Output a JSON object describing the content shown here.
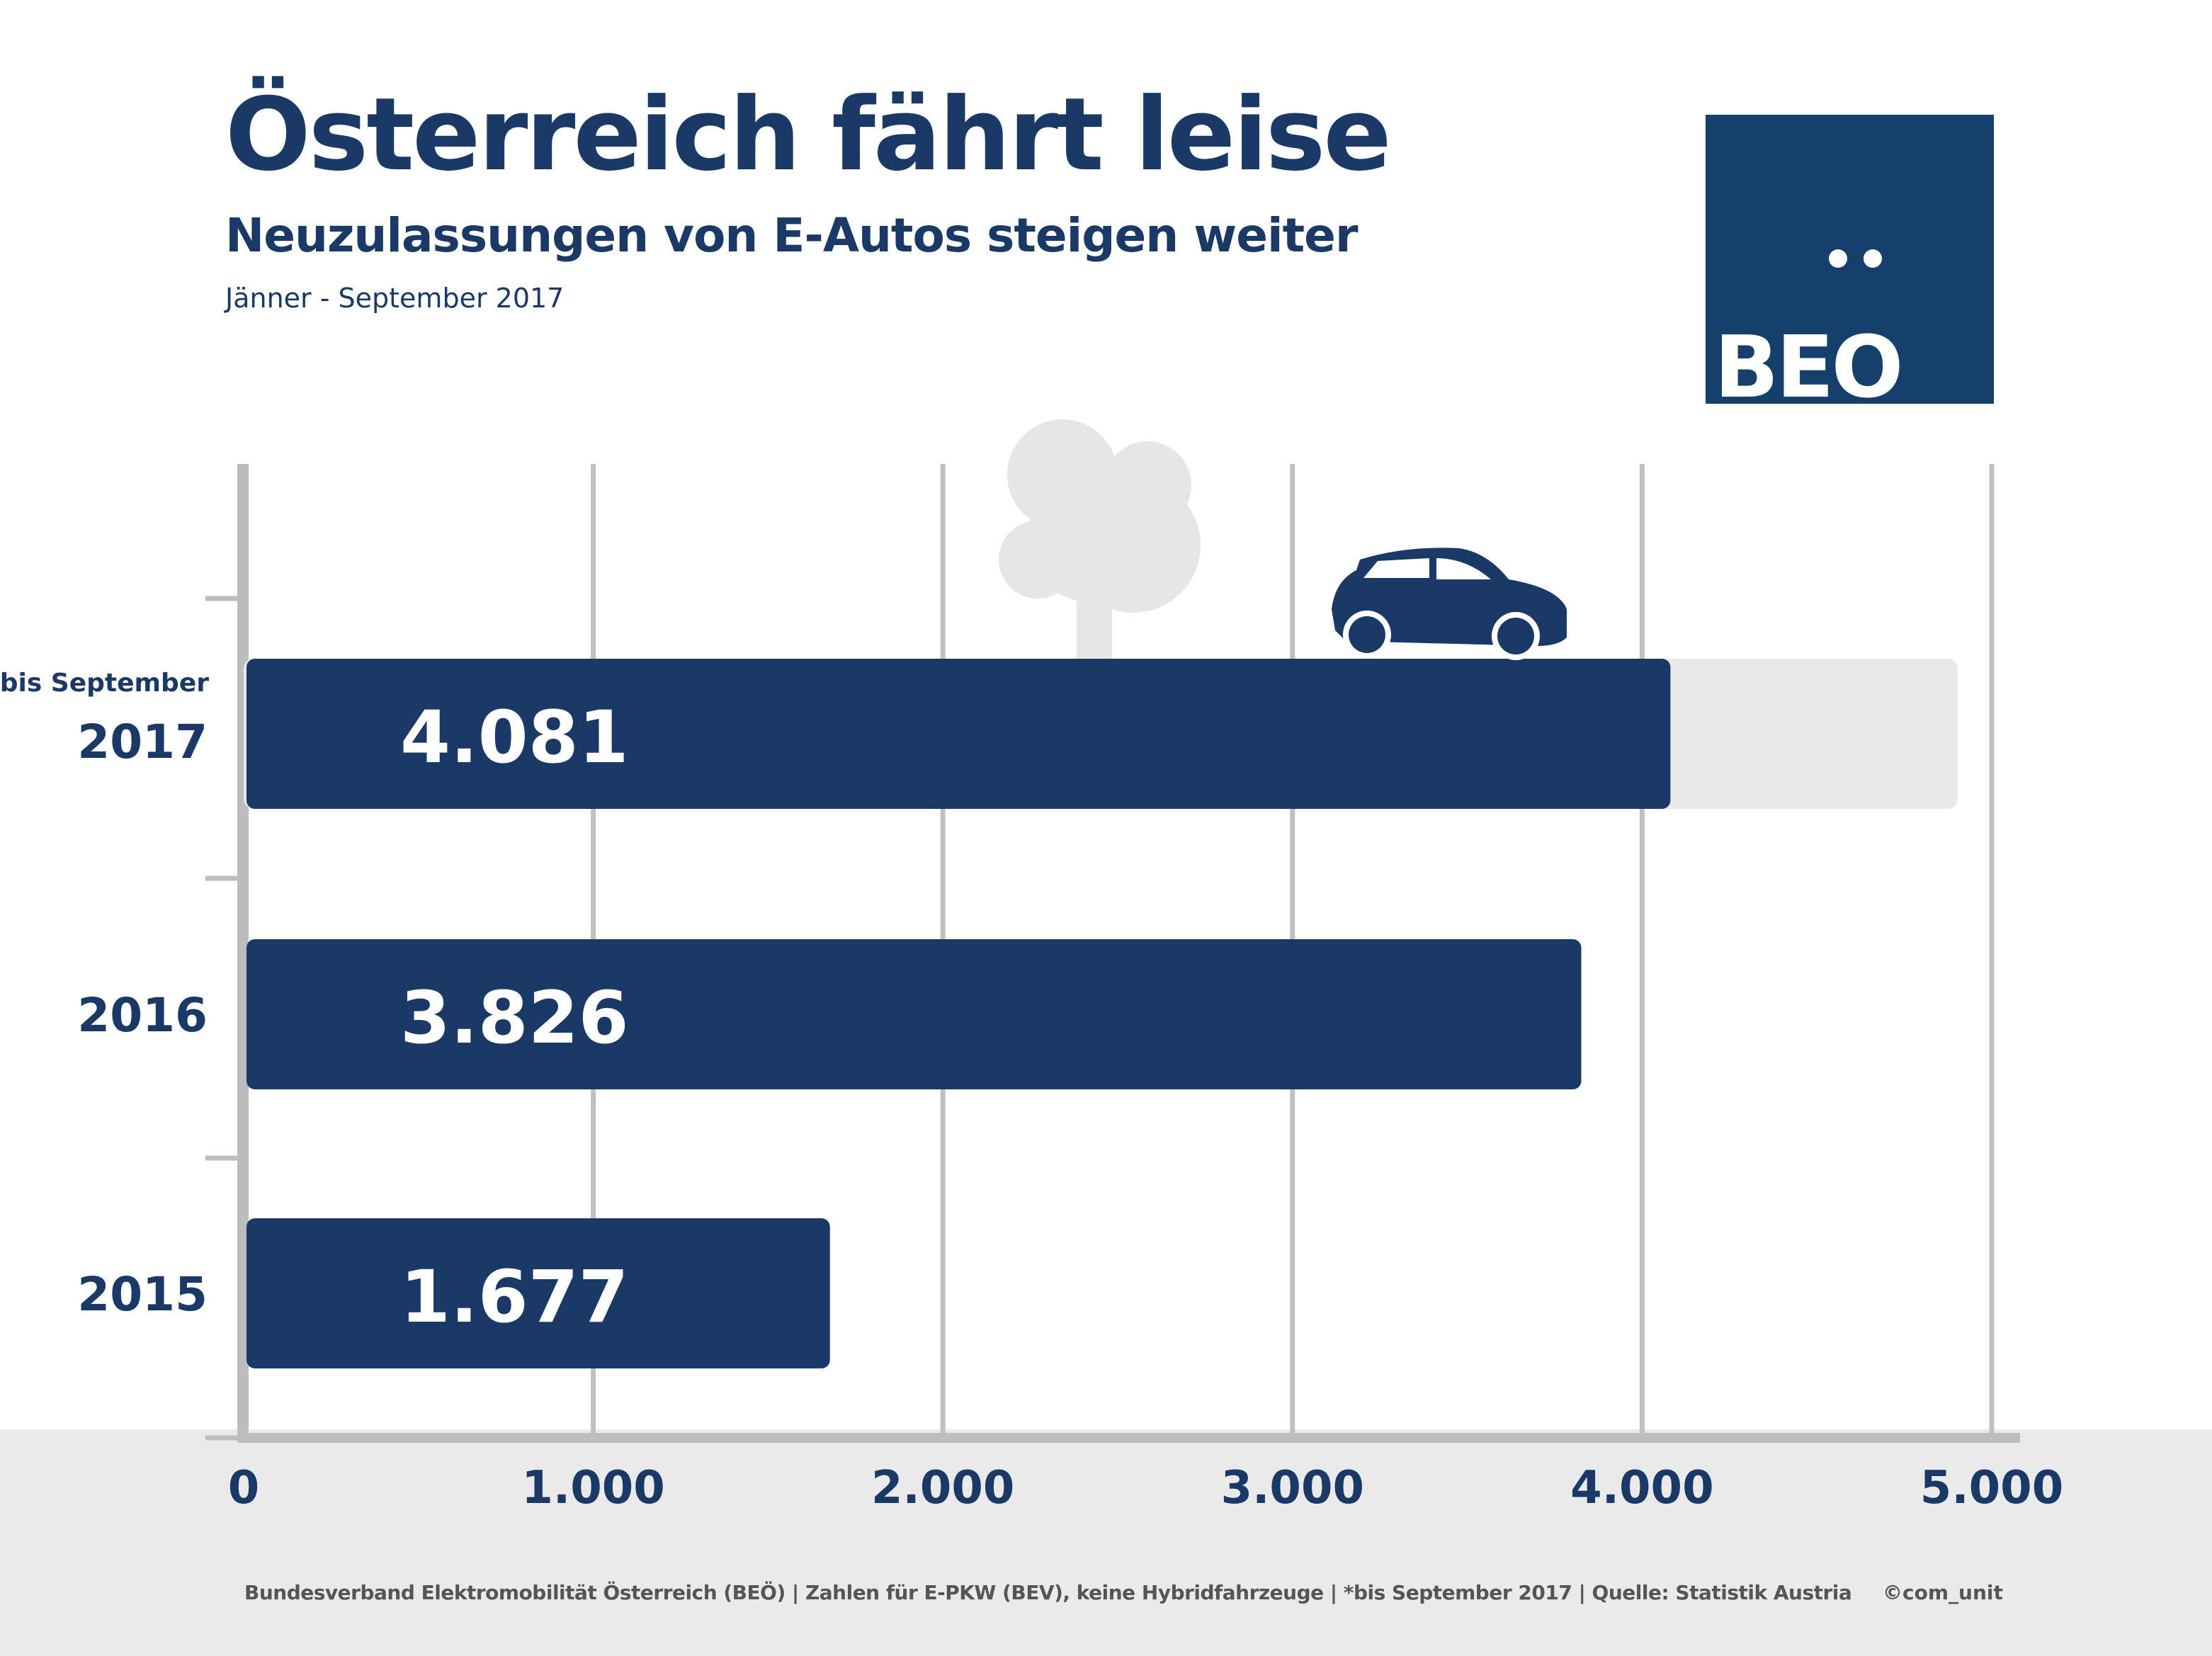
{
  "header": {
    "title": "Österreich fährt leise",
    "subtitle": "Neuzulassungen von E-Autos steigen weiter",
    "period": "Jänner - September 2017"
  },
  "logo": {
    "text": "BEO",
    "color": "#15406c"
  },
  "footer": {
    "source": "Bundesverband Elektromobilität Österreich (BEÖ) | Zahlen für E-PKW (BEV), keine Hybridfahrzeuge | *bis September 2017 | Quelle: Statistik Austria",
    "copyright": "©com_unit"
  },
  "colors": {
    "bar": "#1a3966",
    "ghost_bar": "#e8e8e8",
    "grid": "#c0c0c0",
    "axis": "#bdbdbd",
    "footer_bg": "#eaeaea"
  },
  "icons": [
    "car-icon",
    "tree-icon"
  ],
  "chart_data": {
    "type": "bar",
    "orientation": "horizontal",
    "categories": [
      "2017",
      "2016",
      "2015"
    ],
    "category_notes": [
      "bis September",
      "",
      ""
    ],
    "values": [
      4081,
      3826,
      1677
    ],
    "value_labels": [
      "4.081",
      "3.826",
      "1.677"
    ],
    "xlim": [
      0,
      5000
    ],
    "xticks": [
      0,
      1000,
      2000,
      3000,
      4000,
      5000
    ],
    "xtick_labels": [
      "0",
      "1.000",
      "2.000",
      "3.000",
      "4.000",
      "5.000"
    ],
    "grid": true
  }
}
